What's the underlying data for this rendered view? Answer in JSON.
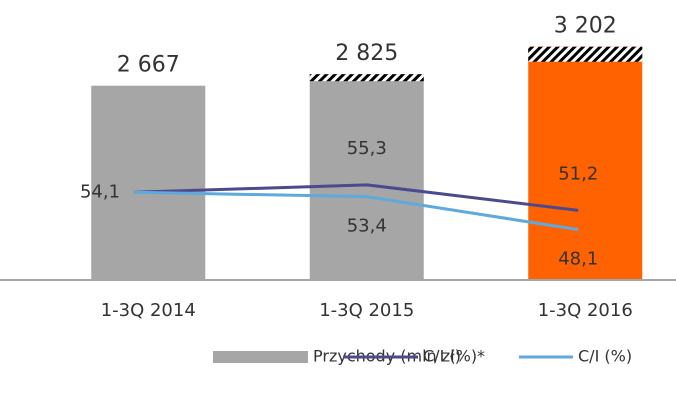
{
  "chart_data": {
    "type": "bar",
    "categories": [
      "1-3Q 2014",
      "1-3Q 2015",
      "1-3Q 2016"
    ],
    "ylim": [
      0,
      3500
    ],
    "y2lim": [
      40,
      81
    ],
    "series": [
      {
        "name": "Przychody (mln zł)",
        "type": "bar",
        "color": "#a6a6a6",
        "colors": [
          "#a6a6a6",
          "#a6a6a6",
          "#ff6200"
        ],
        "values": [
          2667,
          2825,
          3202
        ],
        "value_labels": [
          "2 667",
          "2 825",
          "3 202"
        ]
      },
      {
        "name": "C/I (%)*",
        "type": "line",
        "axis": "y2",
        "color": "#4c4a8e",
        "values": [
          54.1,
          55.3,
          51.2
        ],
        "value_labels": [
          "54,1",
          "55,3",
          "51,2"
        ]
      },
      {
        "name": "C/I (%)",
        "type": "line",
        "axis": "y2",
        "color": "#60a9dc",
        "values": [
          54.1,
          53.4,
          48.1
        ],
        "value_labels": [
          null,
          "53,4",
          "48,1"
        ]
      }
    ]
  }
}
